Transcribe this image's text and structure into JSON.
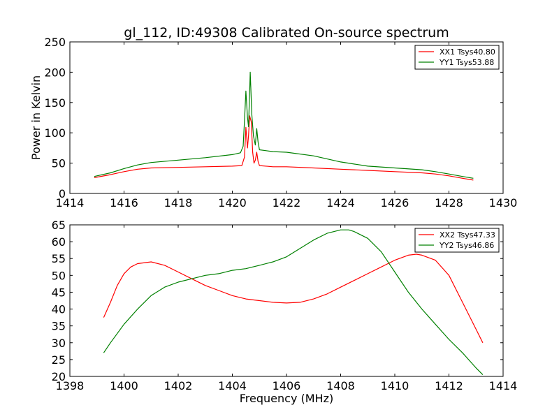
{
  "title": "gl_112, ID:49308 Calibrated On-source spectrum",
  "colors": {
    "xx": "#ff0000",
    "yy": "#008000"
  },
  "chart_data": [
    {
      "type": "line",
      "xlim": [
        1414,
        1430
      ],
      "ylim": [
        0,
        250
      ],
      "xticks": [
        1414,
        1416,
        1418,
        1420,
        1422,
        1424,
        1426,
        1428,
        1430
      ],
      "yticks": [
        0,
        50,
        100,
        150,
        200,
        250
      ],
      "xlabel": "",
      "ylabel": "Power in Kelvin",
      "legend_position": "top-right",
      "grid": false,
      "series": [
        {
          "name": "XX1 Tsys40.80",
          "color": "#ff0000",
          "points": [
            [
              1414.9,
              26
            ],
            [
              1415.5,
              31
            ],
            [
              1416.0,
              36
            ],
            [
              1416.5,
              40
            ],
            [
              1417.0,
              42
            ],
            [
              1418.0,
              43
            ],
            [
              1419.0,
              44
            ],
            [
              1420.0,
              45
            ],
            [
              1420.35,
              46
            ],
            [
              1420.45,
              60
            ],
            [
              1420.5,
              109
            ],
            [
              1420.56,
              75
            ],
            [
              1420.6,
              96
            ],
            [
              1420.64,
              128
            ],
            [
              1420.7,
              118
            ],
            [
              1420.75,
              68
            ],
            [
              1420.8,
              50
            ],
            [
              1420.85,
              55
            ],
            [
              1420.9,
              68
            ],
            [
              1420.95,
              53
            ],
            [
              1421.0,
              46
            ],
            [
              1421.5,
              44
            ],
            [
              1422.0,
              44
            ],
            [
              1423.0,
              42
            ],
            [
              1424.0,
              40
            ],
            [
              1425.0,
              38
            ],
            [
              1426.0,
              36
            ],
            [
              1427.0,
              34
            ],
            [
              1427.5,
              32
            ],
            [
              1428.0,
              29
            ],
            [
              1428.5,
              25
            ],
            [
              1428.9,
              22
            ]
          ]
        },
        {
          "name": "YY1 Tsys53.88",
          "color": "#008000",
          "points": [
            [
              1414.9,
              28
            ],
            [
              1415.5,
              34
            ],
            [
              1416.0,
              41
            ],
            [
              1416.5,
              47
            ],
            [
              1417.0,
              51
            ],
            [
              1418.0,
              55
            ],
            [
              1419.0,
              59
            ],
            [
              1420.0,
              64
            ],
            [
              1420.3,
              67
            ],
            [
              1420.4,
              78
            ],
            [
              1420.45,
              120
            ],
            [
              1420.5,
              169
            ],
            [
              1420.56,
              125
            ],
            [
              1420.6,
              110
            ],
            [
              1420.66,
              200
            ],
            [
              1420.72,
              130
            ],
            [
              1420.78,
              95
            ],
            [
              1420.85,
              80
            ],
            [
              1420.9,
              107
            ],
            [
              1420.95,
              85
            ],
            [
              1421.0,
              72
            ],
            [
              1421.5,
              69
            ],
            [
              1422.0,
              68
            ],
            [
              1423.0,
              62
            ],
            [
              1424.0,
              52
            ],
            [
              1425.0,
              45
            ],
            [
              1426.0,
              42
            ],
            [
              1427.0,
              39
            ],
            [
              1427.5,
              36
            ],
            [
              1428.0,
              32
            ],
            [
              1428.5,
              28
            ],
            [
              1428.9,
              25
            ]
          ]
        }
      ]
    },
    {
      "type": "line",
      "xlim": [
        1398,
        1414
      ],
      "ylim": [
        20,
        65
      ],
      "xticks": [
        1398,
        1400,
        1402,
        1404,
        1406,
        1408,
        1410,
        1412,
        1414
      ],
      "yticks": [
        20,
        25,
        30,
        35,
        40,
        45,
        50,
        55,
        60,
        65
      ],
      "xlabel": "Frequency (MHz)",
      "ylabel": "",
      "legend_position": "top-right",
      "grid": false,
      "series": [
        {
          "name": "XX2 Tsys47.33",
          "color": "#ff0000",
          "points": [
            [
              1399.25,
              37.5
            ],
            [
              1399.5,
              42
            ],
            [
              1399.75,
              47
            ],
            [
              1400.0,
              50.5
            ],
            [
              1400.25,
              52.5
            ],
            [
              1400.5,
              53.5
            ],
            [
              1401.0,
              54
            ],
            [
              1401.5,
              53
            ],
            [
              1402.0,
              51
            ],
            [
              1402.5,
              49
            ],
            [
              1403.0,
              47
            ],
            [
              1403.5,
              45.5
            ],
            [
              1404.0,
              44
            ],
            [
              1404.5,
              43
            ],
            [
              1405.0,
              42.5
            ],
            [
              1405.5,
              42
            ],
            [
              1406.0,
              41.8
            ],
            [
              1406.5,
              42
            ],
            [
              1407.0,
              43
            ],
            [
              1407.5,
              44.5
            ],
            [
              1408.0,
              46.5
            ],
            [
              1408.5,
              48.5
            ],
            [
              1409.0,
              50.5
            ],
            [
              1409.5,
              52.5
            ],
            [
              1410.0,
              54.5
            ],
            [
              1410.5,
              56
            ],
            [
              1410.8,
              56.3
            ],
            [
              1411.0,
              56
            ],
            [
              1411.5,
              54.5
            ],
            [
              1412.0,
              50
            ],
            [
              1412.5,
              42
            ],
            [
              1413.0,
              34
            ],
            [
              1413.25,
              30
            ]
          ]
        },
        {
          "name": "YY2 Tsys46.86",
          "color": "#008000",
          "points": [
            [
              1399.25,
              27
            ],
            [
              1399.5,
              30
            ],
            [
              1400.0,
              35.5
            ],
            [
              1400.5,
              40
            ],
            [
              1401.0,
              44
            ],
            [
              1401.5,
              46.5
            ],
            [
              1402.0,
              48
            ],
            [
              1402.5,
              49
            ],
            [
              1403.0,
              50
            ],
            [
              1403.5,
              50.5
            ],
            [
              1404.0,
              51.5
            ],
            [
              1404.5,
              52
            ],
            [
              1405.0,
              53
            ],
            [
              1405.5,
              54
            ],
            [
              1406.0,
              55.5
            ],
            [
              1406.5,
              58
            ],
            [
              1407.0,
              60.5
            ],
            [
              1407.5,
              62.5
            ],
            [
              1408.0,
              63.5
            ],
            [
              1408.3,
              63.5
            ],
            [
              1408.5,
              63
            ],
            [
              1409.0,
              61
            ],
            [
              1409.5,
              57
            ],
            [
              1410.0,
              51
            ],
            [
              1410.5,
              45
            ],
            [
              1411.0,
              40
            ],
            [
              1411.5,
              35.5
            ],
            [
              1412.0,
              31
            ],
            [
              1412.5,
              27
            ],
            [
              1413.0,
              22.5
            ],
            [
              1413.25,
              20.5
            ]
          ]
        }
      ]
    }
  ]
}
